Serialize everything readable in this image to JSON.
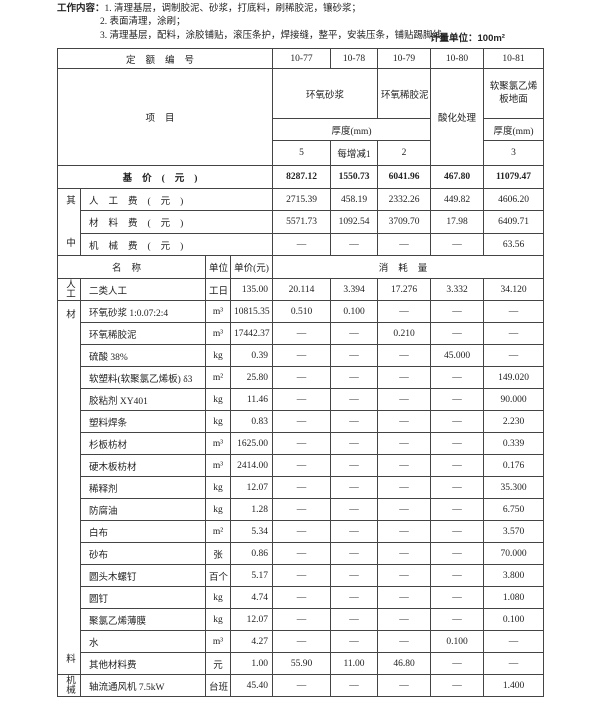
{
  "header": {
    "work_label": "工作内容：",
    "items": [
      "1. 清理基层，调制胶泥、砂浆，打底料，刷稀胶泥，镶砂浆；",
      "2. 表面清理，涂刷；",
      "3. 清理基层，配料，涂胶铺贴，滚压条护，焊接缝，整平，安装压条，铺贴踢脚线。"
    ],
    "unit": "计量单位：100m²"
  },
  "table": {
    "quota_label": "定额编号",
    "codes": [
      "10-77",
      "10-78",
      "10-79",
      "10-80",
      "10-81"
    ],
    "item_label": "项目",
    "groups": [
      "环氧砂浆",
      "环氧稀胶泥",
      "酸化处理",
      "软聚氯乙烯板地面"
    ],
    "thickness_labels": [
      "厚度(mm)",
      "厚度(mm)"
    ],
    "thickness_values": [
      "5",
      "每增减1",
      "2",
      "3"
    ],
    "base_label": "基价(元)",
    "base_values": [
      "8287.12",
      "1550.73",
      "6041.96",
      "467.80",
      "11079.47"
    ],
    "cost_group_label": "其中",
    "costs": [
      {
        "name": "人工费(元)",
        "values": [
          "2715.39",
          "458.19",
          "2332.26",
          "449.82",
          "4606.20"
        ]
      },
      {
        "name": "材料费(元)",
        "values": [
          "5571.73",
          "1092.54",
          "3709.70",
          "17.98",
          "6409.71"
        ]
      },
      {
        "name": "机械费(元)",
        "values": [
          "—",
          "—",
          "—",
          "—",
          "63.56"
        ]
      }
    ],
    "col_name": "名称",
    "col_unit": "单位",
    "col_price": "单价(元)",
    "col_consumption": "消耗量",
    "sections": [
      {
        "category": "人工",
        "rows": [
          {
            "name": "二类人工",
            "unit": "工日",
            "price": "135.00",
            "values": [
              "20.114",
              "3.394",
              "17.276",
              "3.332",
              "34.120"
            ]
          }
        ]
      },
      {
        "category": "材料",
        "rows": [
          {
            "name": "环氧砂浆 1:0.07:2:4",
            "unit": "m³",
            "price": "10815.35",
            "values": [
              "0.510",
              "0.100",
              "—",
              "—",
              "—"
            ]
          },
          {
            "name": "环氧稀胶泥",
            "unit": "m³",
            "price": "17442.37",
            "values": [
              "—",
              "—",
              "0.210",
              "—",
              "—"
            ]
          },
          {
            "name": "硫酸 38%",
            "unit": "kg",
            "price": "0.39",
            "values": [
              "—",
              "—",
              "—",
              "45.000",
              "—"
            ]
          },
          {
            "name": "软塑料(软聚氯乙烯板) δ3",
            "unit": "m²",
            "price": "25.80",
            "values": [
              "—",
              "—",
              "—",
              "—",
              "149.020"
            ]
          },
          {
            "name": "胶粘剂 XY401",
            "unit": "kg",
            "price": "11.46",
            "values": [
              "—",
              "—",
              "—",
              "—",
              "90.000"
            ]
          },
          {
            "name": "塑料焊条",
            "unit": "kg",
            "price": "0.83",
            "values": [
              "—",
              "—",
              "—",
              "—",
              "2.230"
            ]
          },
          {
            "name": "杉板枋材",
            "unit": "m³",
            "price": "1625.00",
            "values": [
              "—",
              "—",
              "—",
              "—",
              "0.339"
            ]
          },
          {
            "name": "硬木板枋材",
            "unit": "m³",
            "price": "2414.00",
            "values": [
              "—",
              "—",
              "—",
              "—",
              "0.176"
            ]
          },
          {
            "name": "稀释剂",
            "unit": "kg",
            "price": "12.07",
            "values": [
              "—",
              "—",
              "—",
              "—",
              "35.300"
            ]
          },
          {
            "name": "防腐油",
            "unit": "kg",
            "price": "1.28",
            "values": [
              "—",
              "—",
              "—",
              "—",
              "6.750"
            ]
          },
          {
            "name": "白布",
            "unit": "m²",
            "price": "5.34",
            "values": [
              "—",
              "—",
              "—",
              "—",
              "3.570"
            ]
          },
          {
            "name": "砂布",
            "unit": "张",
            "price": "0.86",
            "values": [
              "—",
              "—",
              "—",
              "—",
              "70.000"
            ]
          },
          {
            "name": "圆头木螺钉",
            "unit": "百个",
            "price": "5.17",
            "values": [
              "—",
              "—",
              "—",
              "—",
              "3.800"
            ]
          },
          {
            "name": "圆钉",
            "unit": "kg",
            "price": "4.74",
            "values": [
              "—",
              "—",
              "—",
              "—",
              "1.080"
            ]
          },
          {
            "name": "聚氯乙烯薄膜",
            "unit": "kg",
            "price": "12.07",
            "values": [
              "—",
              "—",
              "—",
              "—",
              "0.100"
            ]
          },
          {
            "name": "水",
            "unit": "m³",
            "price": "4.27",
            "values": [
              "—",
              "—",
              "—",
              "0.100",
              "—"
            ]
          },
          {
            "name": "其他材料费",
            "unit": "元",
            "price": "1.00",
            "values": [
              "55.90",
              "11.00",
              "46.80",
              "—",
              "—"
            ]
          }
        ]
      },
      {
        "category": "机械",
        "rows": [
          {
            "name": "轴流通风机 7.5kW",
            "unit": "台班",
            "price": "45.40",
            "values": [
              "—",
              "—",
              "—",
              "—",
              "1.400"
            ]
          }
        ]
      }
    ]
  }
}
